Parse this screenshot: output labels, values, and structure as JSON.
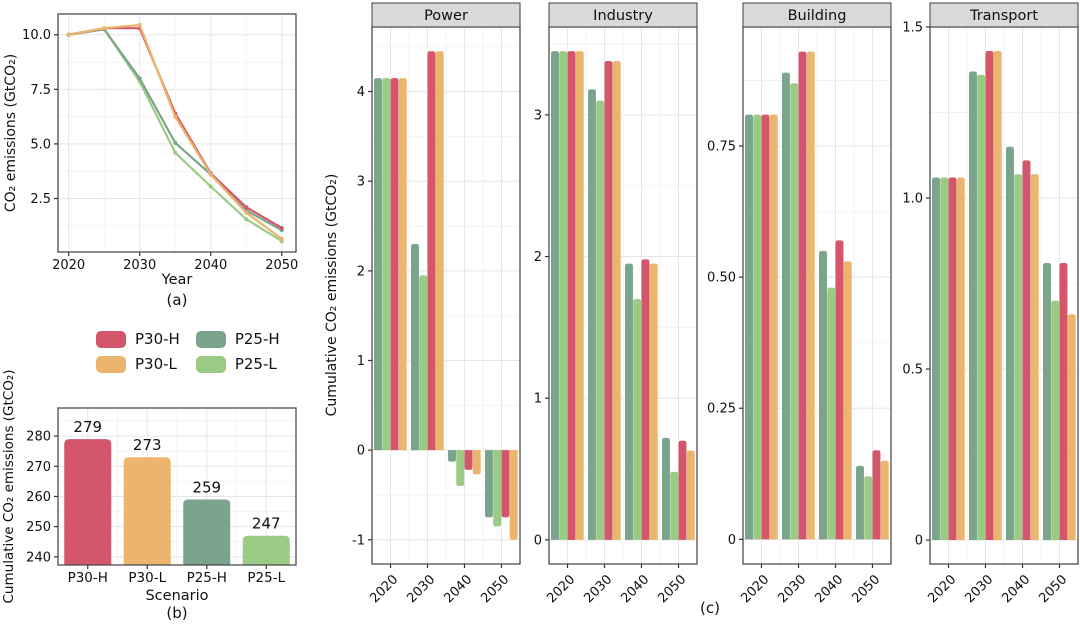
{
  "colors": {
    "P30-H": "#d4566b",
    "P30-L": "#ebb56d",
    "P25-H": "#7aa58c",
    "P25-L": "#99cb84",
    "strip_bg": "#d9d9d9",
    "strip_border": "#3f3f3f",
    "panel_border": "#4d4d4d",
    "grid_major": "#e7e5e5",
    "grid_minor": "#f3f2f2",
    "tick": "#333333",
    "text": "#111111"
  },
  "legend": {
    "items": [
      {
        "label": "P30-H",
        "color_key": "P30-H"
      },
      {
        "label": "P25-H",
        "color_key": "P25-H"
      },
      {
        "label": "P30-L",
        "color_key": "P30-L"
      },
      {
        "label": "P25-L",
        "color_key": "P25-L"
      }
    ]
  },
  "chart_data": [
    {
      "id": "a",
      "type": "line",
      "caption": "(a)",
      "xlabel": "Year",
      "ylabel": "CO₂ emissions (GtCO₂)",
      "x": [
        2020,
        2025,
        2030,
        2035,
        2040,
        2045,
        2050
      ],
      "series": [
        {
          "name": "P30-H",
          "values": [
            10.0,
            10.3,
            10.3,
            6.4,
            3.65,
            2.1,
            1.15
          ]
        },
        {
          "name": "P30-L",
          "values": [
            10.0,
            10.3,
            10.45,
            6.25,
            3.6,
            1.85,
            0.65
          ]
        },
        {
          "name": "P25-H",
          "values": [
            10.0,
            10.25,
            8.0,
            5.05,
            3.6,
            1.95,
            1.05
          ]
        },
        {
          "name": "P25-L",
          "values": [
            10.0,
            10.25,
            7.85,
            4.6,
            3.05,
            1.55,
            0.55
          ]
        }
      ],
      "draw_order": [
        "P25-L",
        "P25-H",
        "P30-H",
        "P30-L"
      ],
      "xlim": [
        2018.5,
        2052
      ],
      "ylim": [
        0.05,
        10.95
      ],
      "xticks": {
        "values": [
          2020,
          2030,
          2040,
          2050
        ],
        "labels": [
          "2020",
          "2030",
          "2040",
          "2050"
        ],
        "minor": [
          2025,
          2035,
          2045
        ]
      },
      "yticks": {
        "values": [
          2.5,
          5,
          7.5,
          10
        ],
        "labels": [
          "2.5",
          "5.0",
          "7.5",
          "10.0"
        ],
        "minor": [
          1.25,
          3.75,
          6.25,
          8.75
        ]
      },
      "grid": true,
      "legend_position": "below-panel"
    },
    {
      "id": "b",
      "type": "bar",
      "caption": "(b)",
      "xlabel": "Scenario",
      "ylabel": "Cumulative CO₂ emissions (GtCO₂)",
      "categories": [
        "P30-H",
        "P30-L",
        "P25-H",
        "P25-L"
      ],
      "values": [
        279,
        273,
        259,
        247
      ],
      "bar_labels": [
        "279",
        "273",
        "259",
        "247"
      ],
      "ylim": [
        237.3,
        289.3
      ],
      "yticks": {
        "values": [
          240,
          250,
          260,
          270,
          280
        ],
        "labels": [
          "240",
          "250",
          "260",
          "270",
          "280"
        ],
        "minor": [
          235,
          245,
          255,
          265,
          275,
          285
        ]
      },
      "grid": true
    },
    {
      "id": "c",
      "type": "grouped-bar-facets",
      "caption": "(c)",
      "ylabel": "Cumulative CO₂ emissions (GtCO₂)",
      "categories": [
        "2020",
        "2030",
        "2040",
        "2050"
      ],
      "series_order": [
        "P25-H",
        "P25-L",
        "P30-H",
        "P30-L"
      ],
      "facets": [
        {
          "title": "Power",
          "ylim": [
            -1.27,
            4.72
          ],
          "yticks": {
            "values": [
              -1,
              0,
              1,
              2,
              3,
              4
            ],
            "labels": [
              "-1",
              "0",
              "1",
              "2",
              "3",
              "4"
            ],
            "minor": [
              -0.5,
              0.5,
              1.5,
              2.5,
              3.5,
              4.5
            ]
          },
          "series": [
            {
              "name": "P25-H",
              "values": [
                4.15,
                2.3,
                -0.13,
                -0.75
              ]
            },
            {
              "name": "P25-L",
              "values": [
                4.15,
                1.95,
                -0.4,
                -0.85
              ]
            },
            {
              "name": "P30-H",
              "values": [
                4.15,
                4.45,
                -0.22,
                -0.75
              ]
            },
            {
              "name": "P30-L",
              "values": [
                4.15,
                4.45,
                -0.27,
                -1.0
              ]
            }
          ]
        },
        {
          "title": "Industry",
          "ylim": [
            -0.17,
            3.62
          ],
          "yticks": {
            "values": [
              0,
              1,
              2,
              3
            ],
            "labels": [
              "0",
              "1",
              "2",
              "3"
            ],
            "minor": [
              0.5,
              1.5,
              2.5,
              3.5
            ]
          },
          "series": [
            {
              "name": "P25-H",
              "values": [
                3.45,
                3.18,
                1.95,
                0.72
              ]
            },
            {
              "name": "P25-L",
              "values": [
                3.45,
                3.1,
                1.7,
                0.48
              ]
            },
            {
              "name": "P30-H",
              "values": [
                3.45,
                3.38,
                1.98,
                0.7
              ]
            },
            {
              "name": "P30-L",
              "values": [
                3.45,
                3.38,
                1.95,
                0.63
              ]
            }
          ]
        },
        {
          "title": "Building",
          "ylim": [
            -0.047,
            0.977
          ],
          "yticks": {
            "values": [
              0,
              0.25,
              0.5,
              0.75
            ],
            "labels": [
              "0",
              "0.25",
              "0.50",
              "0.75"
            ],
            "minor": [
              0.125,
              0.375,
              0.625,
              0.875
            ]
          },
          "series": [
            {
              "name": "P25-H",
              "values": [
                0.81,
                0.89,
                0.55,
                0.14
              ]
            },
            {
              "name": "P25-L",
              "values": [
                0.81,
                0.87,
                0.48,
                0.12
              ]
            },
            {
              "name": "P30-H",
              "values": [
                0.81,
                0.93,
                0.57,
                0.17
              ]
            },
            {
              "name": "P30-L",
              "values": [
                0.81,
                0.93,
                0.53,
                0.15
              ]
            }
          ]
        },
        {
          "title": "Transport",
          "ylim": [
            -0.07,
            1.5
          ],
          "yticks": {
            "values": [
              0,
              0.5,
              1.0,
              1.5
            ],
            "labels": [
              "0",
              "0.5",
              "1.0",
              "1.5"
            ],
            "minor": [
              0.25,
              0.75,
              1.25
            ]
          },
          "series": [
            {
              "name": "P25-H",
              "values": [
                1.06,
                1.37,
                1.15,
                0.81
              ]
            },
            {
              "name": "P25-L",
              "values": [
                1.06,
                1.36,
                1.07,
                0.7
              ]
            },
            {
              "name": "P30-H",
              "values": [
                1.06,
                1.43,
                1.11,
                0.81
              ]
            },
            {
              "name": "P30-L",
              "values": [
                1.06,
                1.43,
                1.07,
                0.66
              ]
            }
          ]
        }
      ]
    }
  ]
}
